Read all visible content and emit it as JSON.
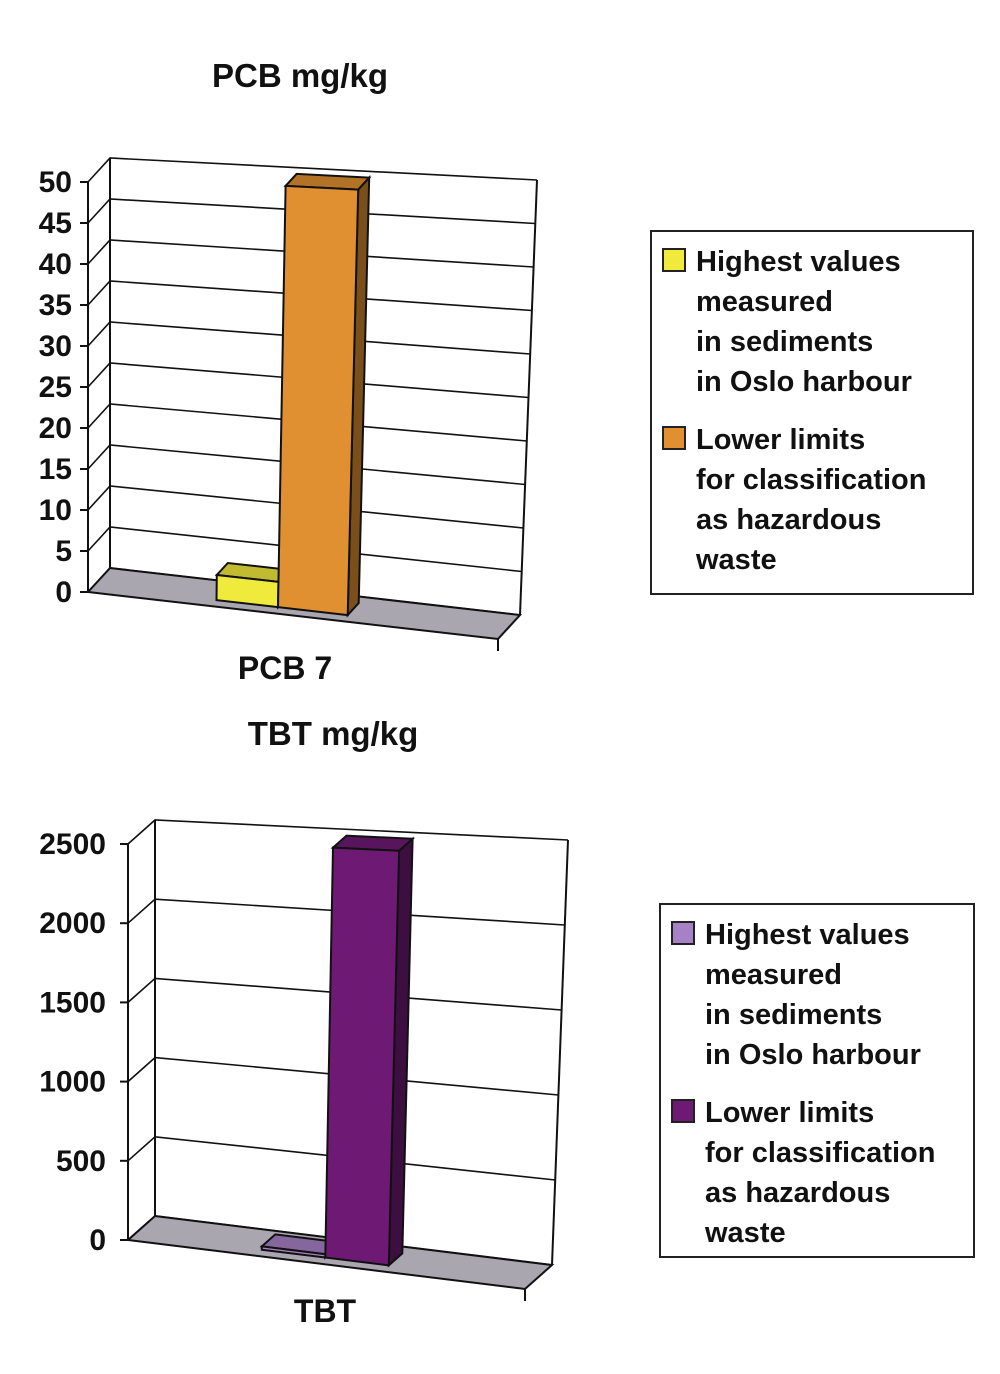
{
  "chart_data": [
    {
      "type": "bar",
      "title": "PCB mg/kg",
      "categories": [
        "PCB 7"
      ],
      "series": [
        {
          "name": "Highest values\nmeasured\nin sediments\nin Oslo harbour",
          "values": [
            3
          ],
          "color": "#f0ea3c"
        },
        {
          "name": "Lower limits\nfor classification\nas hazardous\nwaste",
          "values": [
            50
          ],
          "color": "#e09030"
        }
      ],
      "ylim": [
        0,
        50
      ],
      "yticks": [
        "0",
        "5",
        "10",
        "15",
        "20",
        "25",
        "30",
        "35",
        "40",
        "45",
        "50"
      ],
      "ytick_values": [
        0,
        5,
        10,
        15,
        20,
        25,
        30,
        35,
        40,
        45,
        50
      ],
      "grid": true,
      "legend": "right",
      "style": "3d"
    },
    {
      "type": "bar",
      "title": "TBT mg/kg",
      "categories": [
        "TBT"
      ],
      "series": [
        {
          "name": "Highest values\nmeasured\nin sediments\nin Oslo harbour",
          "values": [
            20
          ],
          "color": "#a681c6"
        },
        {
          "name": "Lower limits\nfor classification\nas hazardous\nwaste",
          "values": [
            2500
          ],
          "color": "#6e1a74"
        }
      ],
      "ylim": [
        0,
        2500
      ],
      "yticks": [
        "0",
        "500",
        "1000",
        "1500",
        "2000",
        "2500"
      ],
      "ytick_values": [
        0,
        500,
        1000,
        1500,
        2000,
        2500
      ],
      "grid": true,
      "legend": "right",
      "style": "3d"
    }
  ],
  "colors": {
    "floor": "#a9a6b0"
  }
}
